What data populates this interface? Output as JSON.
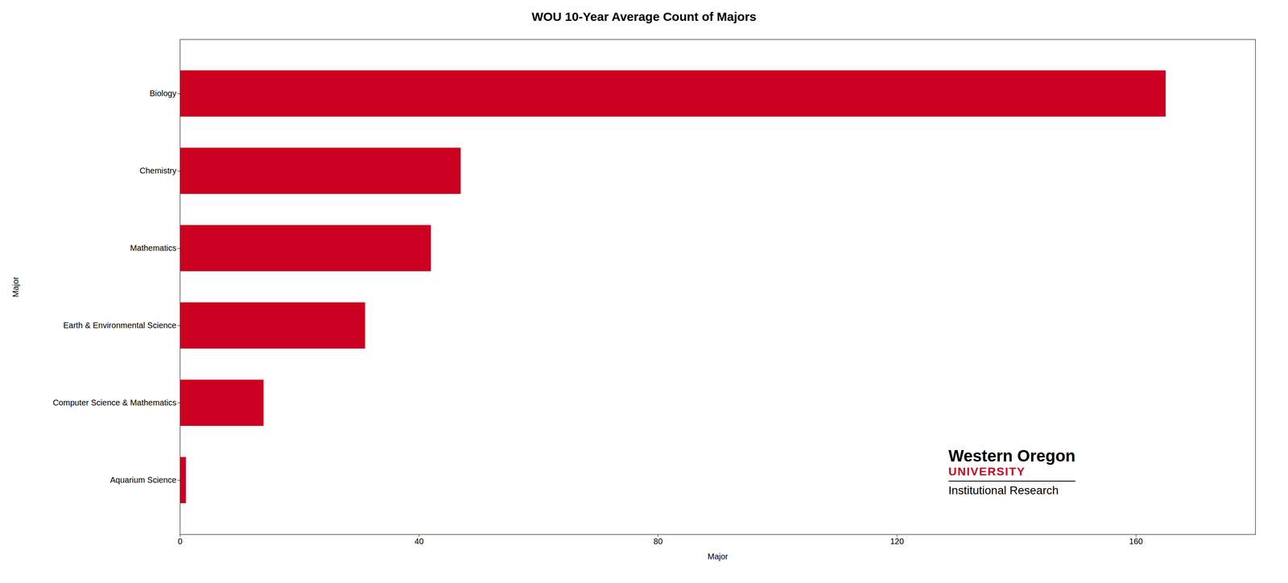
{
  "chart_data": {
    "type": "bar",
    "orientation": "horizontal",
    "title": "WOU 10-Year Average Count of Majors",
    "categories": [
      "Aquarium Science",
      "Computer Science & Mathematics",
      "Earth & Environmental Science",
      "Mathematics",
      "Chemistry",
      "Biology"
    ],
    "values": [
      1,
      14,
      31,
      42,
      47,
      165
    ],
    "color": "#CC0022",
    "xlabel": "Major",
    "ylabel": "Major",
    "xlim": [
      0,
      180
    ],
    "xticks": [
      0,
      40,
      80,
      120,
      160
    ],
    "grid": false,
    "annotations": [
      "Western Oregon",
      "UNIVERSITY",
      "Institutional Research"
    ]
  }
}
